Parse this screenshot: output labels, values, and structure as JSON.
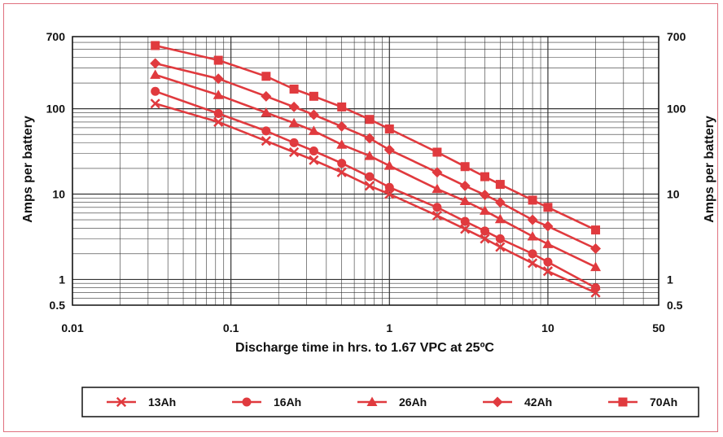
{
  "chart_data": {
    "type": "line",
    "title": "",
    "xlabel": "Discharge time in hrs. to 1.67 VPC at 25ºC",
    "ylabel": "Amps per battery",
    "ylabel_right": "Amps per battery",
    "x_scale": "log",
    "y_scale": "log",
    "xlim": [
      0.01,
      50
    ],
    "ylim": [
      0.5,
      700
    ],
    "x_ticks": [
      0.01,
      0.1,
      1,
      10,
      50
    ],
    "x_tick_labels": [
      "0.01",
      "0.1",
      "1",
      "10",
      "50"
    ],
    "y_ticks": [
      0.5,
      1,
      10,
      100,
      700
    ],
    "y_tick_labels": [
      "0.5",
      "1",
      "10",
      "100",
      "700"
    ],
    "grid": true,
    "legend_position": "bottom",
    "line_color": "#e03a3e",
    "series": [
      {
        "name": "13Ah",
        "marker": "x",
        "x": [
          0.0333,
          0.0833,
          0.1667,
          0.25,
          0.3333,
          0.5,
          0.75,
          1,
          2,
          3,
          4,
          5,
          8,
          10,
          20
        ],
        "y": [
          115,
          70,
          42,
          31,
          25,
          18,
          12.5,
          10,
          5.6,
          3.9,
          3,
          2.4,
          1.55,
          1.25,
          0.7
        ]
      },
      {
        "name": "16Ah",
        "marker": "circle",
        "x": [
          0.0333,
          0.0833,
          0.1667,
          0.25,
          0.3333,
          0.5,
          0.75,
          1,
          2,
          3,
          4,
          5,
          8,
          10,
          20
        ],
        "y": [
          160,
          88,
          55,
          40,
          32,
          23,
          16,
          12,
          7,
          4.8,
          3.7,
          3,
          2,
          1.6,
          0.8
        ]
      },
      {
        "name": "26Ah",
        "marker": "triangle",
        "x": [
          0.0333,
          0.0833,
          0.1667,
          0.25,
          0.3333,
          0.5,
          0.75,
          1,
          2,
          3,
          4,
          5,
          8,
          10,
          20
        ],
        "y": [
          250,
          145,
          90,
          68,
          55,
          38,
          28,
          21.5,
          11.5,
          8.3,
          6.4,
          5.1,
          3.2,
          2.6,
          1.4
        ]
      },
      {
        "name": "42Ah",
        "marker": "diamond",
        "x": [
          0.0333,
          0.0833,
          0.1667,
          0.25,
          0.3333,
          0.5,
          0.75,
          1,
          2,
          3,
          4,
          5,
          8,
          10,
          20
        ],
        "y": [
          340,
          225,
          140,
          105,
          85,
          62,
          45,
          33,
          18,
          12.5,
          9.8,
          8,
          5,
          4.2,
          2.3
        ]
      },
      {
        "name": "70Ah",
        "marker": "square",
        "x": [
          0.0333,
          0.0833,
          0.1667,
          0.25,
          0.3333,
          0.5,
          0.75,
          1,
          2,
          3,
          4,
          5,
          8,
          10,
          20
        ],
        "y": [
          550,
          370,
          240,
          170,
          140,
          105,
          75,
          58,
          31,
          21,
          16,
          13,
          8.5,
          7,
          3.8
        ]
      }
    ]
  }
}
